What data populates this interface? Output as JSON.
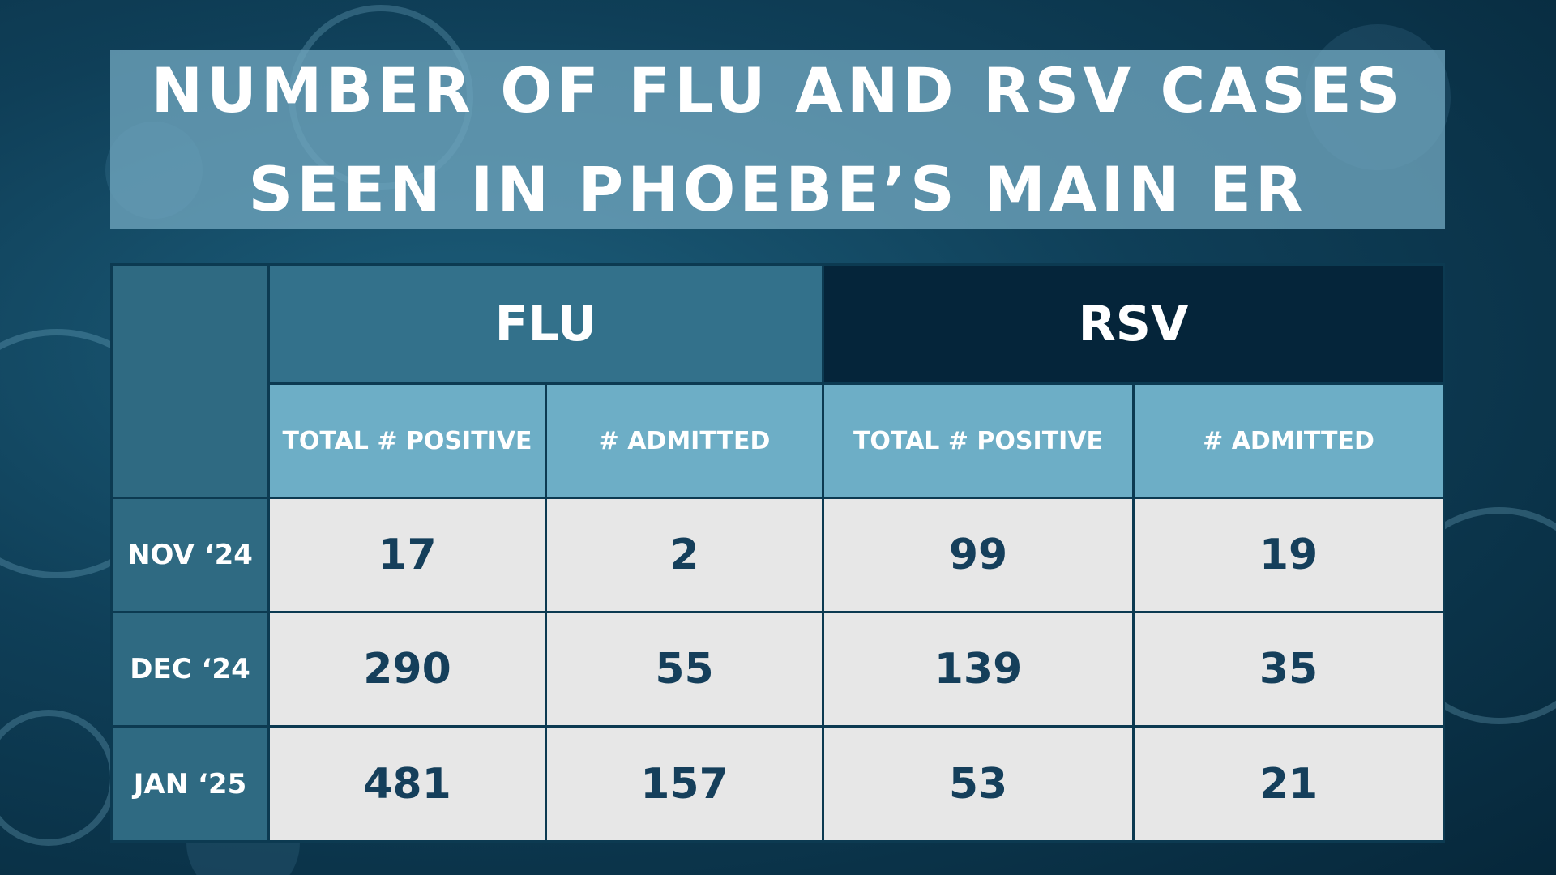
{
  "title": [
    "NUMBER OF FLU AND RSV CASES",
    "SEEN IN PHOEBE’S MAIN ER"
  ],
  "table": {
    "groups": [
      "FLU",
      "RSV"
    ],
    "columns": [
      "TOTAL # POSITIVE",
      "# ADMITTED",
      "TOTAL # POSITIVE",
      "# ADMITTED"
    ],
    "rows": [
      {
        "label": "NOV ‘24",
        "values": [
          17,
          2,
          99,
          19
        ]
      },
      {
        "label": "DEC ‘24",
        "values": [
          290,
          55,
          139,
          35
        ]
      },
      {
        "label": "JAN ‘25",
        "values": [
          481,
          157,
          53,
          21
        ]
      }
    ]
  }
}
